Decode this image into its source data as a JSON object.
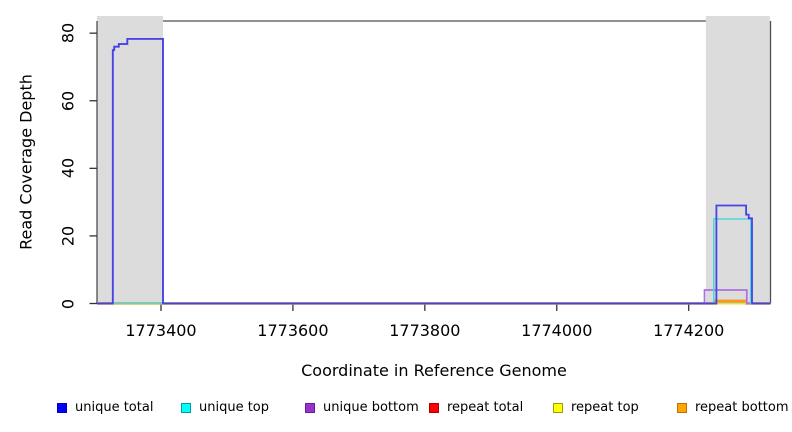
{
  "chart_data": {
    "type": "line",
    "title": "",
    "xlabel": "Coordinate in Reference Genome",
    "ylabel": "Read Coverage Depth",
    "xlim": [
      1773303,
      1774324
    ],
    "ylim": [
      0,
      83.6
    ],
    "x_ticks": [
      1773400,
      1773600,
      1773800,
      1774000,
      1774200
    ],
    "y_ticks": [
      0,
      20,
      40,
      60,
      80
    ],
    "grid": false,
    "legend_position": "bottom",
    "box_color": "#4f4f4f",
    "tick_color": "#333333",
    "shaded_regions": [
      {
        "name": "highlight-region-left",
        "x1": 1773303,
        "x2": 1773403,
        "color": "#dcdcdc"
      },
      {
        "name": "highlight-region-right",
        "x1": 1774226,
        "x2": 1774323,
        "color": "#dcdcdc"
      }
    ],
    "series": [
      {
        "name": "unique total",
        "color": "#0000ff",
        "swatch_border": "#0000c0",
        "line_color": "#4343e6",
        "line_width": 1.8,
        "points": [
          [
            1773303,
            0
          ],
          [
            1773327,
            0
          ],
          [
            1773327,
            75
          ],
          [
            1773329,
            75
          ],
          [
            1773329,
            76
          ],
          [
            1773336,
            76
          ],
          [
            1773336,
            76.8
          ],
          [
            1773349,
            76.8
          ],
          [
            1773349,
            78.3
          ],
          [
            1773403,
            78.3
          ],
          [
            1773403,
            0
          ],
          [
            1774242,
            0
          ],
          [
            1774242,
            29
          ],
          [
            1774287,
            29
          ],
          [
            1774287,
            26.3
          ],
          [
            1774291,
            26.3
          ],
          [
            1774291,
            25.2
          ],
          [
            1774296,
            25.2
          ],
          [
            1774296,
            0
          ],
          [
            1774324,
            0
          ]
        ]
      },
      {
        "name": "unique top",
        "color": "#00ffff",
        "swatch_border": "#009d9d",
        "line_color": "#4ed7dc",
        "line_width": 1.5,
        "points": [
          [
            1773303,
            0
          ],
          [
            1774238,
            0
          ],
          [
            1774238,
            25
          ],
          [
            1774294,
            25
          ],
          [
            1774294,
            0
          ],
          [
            1774324,
            0
          ]
        ]
      },
      {
        "name": "unique bottom",
        "color": "#9932cc",
        "swatch_border": "#6a1f9a",
        "line_color": "#ab71dd",
        "line_width": 1.7,
        "points": [
          [
            1773303,
            0
          ],
          [
            1773327,
            0
          ],
          [
            1773327,
            75
          ],
          [
            1773329,
            75
          ],
          [
            1773329,
            76
          ],
          [
            1773336,
            76
          ],
          [
            1773336,
            76.8
          ],
          [
            1773349,
            76.8
          ],
          [
            1773349,
            78.3
          ],
          [
            1773403,
            78.3
          ],
          [
            1773403,
            0
          ],
          [
            1774224,
            0
          ],
          [
            1774224,
            4
          ],
          [
            1774288,
            4
          ],
          [
            1774288,
            0
          ],
          [
            1774324,
            0
          ]
        ]
      },
      {
        "name": "repeat total",
        "color": "#ff0000",
        "swatch_border": "#b40000",
        "line_color": "#e03030",
        "line_width": 1.5,
        "points": [
          [
            1773303,
            0
          ],
          [
            1774324,
            0
          ]
        ]
      },
      {
        "name": "repeat top",
        "color": "#ffff00",
        "swatch_border": "#9f9f00",
        "line_color": "#e8dd4e",
        "line_width": 2.0,
        "points": [
          [
            1773303,
            0
          ],
          [
            1774324,
            0
          ]
        ]
      },
      {
        "name": "repeat bottom",
        "color": "#ffa500",
        "swatch_border": "#b87400",
        "line_color": "#ff9417",
        "line_width": 2.4,
        "points": [
          [
            1773303,
            0
          ],
          [
            1774241,
            0
          ],
          [
            1774241,
            0.8
          ],
          [
            1774287,
            0.8
          ],
          [
            1774287,
            0
          ],
          [
            1774324,
            0
          ]
        ]
      }
    ],
    "draw_order": [
      "repeat total",
      "repeat bottom",
      "repeat top",
      "unique bottom",
      "unique top",
      "unique total"
    ]
  }
}
